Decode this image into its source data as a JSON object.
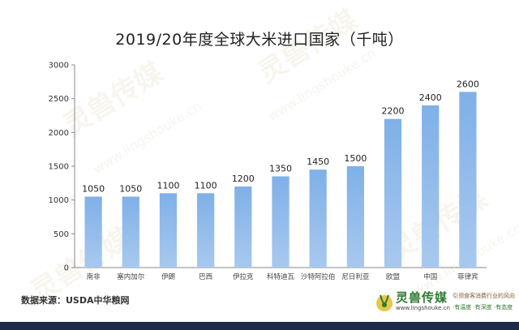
{
  "chart_data": {
    "type": "bar",
    "title": "2019/20年度全球大米进口国家（千吨）",
    "categories": [
      "南非",
      "塞内加尔",
      "伊朗",
      "巴西",
      "伊拉克",
      "科特迪瓦",
      "沙特阿拉伯",
      "尼日利亚",
      "欧盟",
      "中国",
      "菲律宾"
    ],
    "values": [
      1050,
      1050,
      1100,
      1100,
      1200,
      1350,
      1450,
      1500,
      2200,
      2400,
      2600
    ],
    "ylim": [
      0,
      3000
    ],
    "yticks": [
      0,
      500,
      1000,
      1500,
      2000,
      2500,
      3000
    ],
    "xlabel": "",
    "ylabel": "",
    "bar_color": "#8fb8e6",
    "grid": false,
    "legend": "none"
  },
  "source_text": "数据来源：USDA中华粮网",
  "brand": {
    "name": "灵兽传媒",
    "url": "www.lingshouke.cn",
    "slogan": "引领食客消费行业的风向",
    "tags": "·有温度 ·有深度 ·有态度"
  },
  "watermark": {
    "name": "灵兽传媒",
    "url": "www.lingshouke.cn"
  }
}
